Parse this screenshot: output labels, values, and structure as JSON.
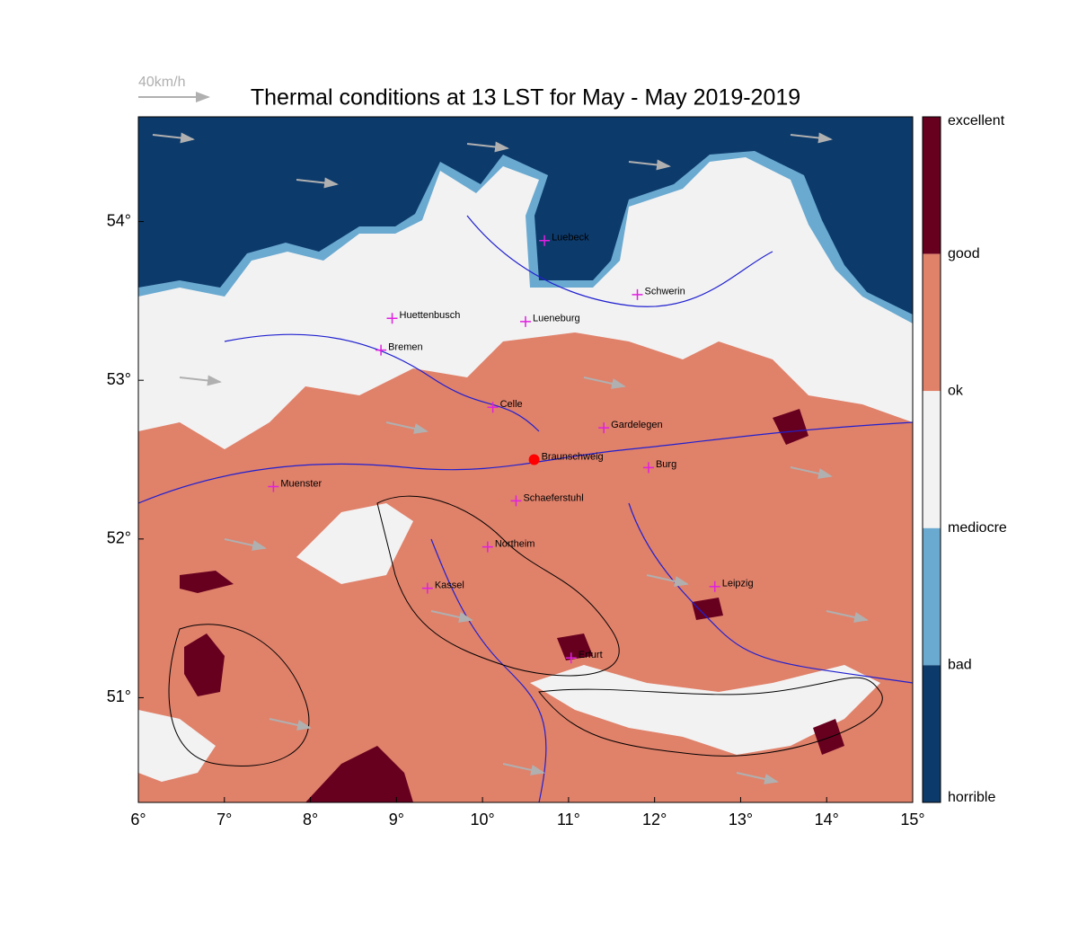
{
  "title": "Thermal conditions at 13 LST for May - May  2019-2019",
  "wind_legend": "40km/h",
  "xlim": [
    6,
    15
  ],
  "ylim": [
    50.34,
    54.66
  ],
  "xticks": [
    {
      "value": 6,
      "label": "6°"
    },
    {
      "value": 7,
      "label": "7°"
    },
    {
      "value": 8,
      "label": "8°"
    },
    {
      "value": 9,
      "label": "9°"
    },
    {
      "value": 10,
      "label": "10°"
    },
    {
      "value": 11,
      "label": "11°"
    },
    {
      "value": 12,
      "label": "12°"
    },
    {
      "value": 13,
      "label": "13°"
    },
    {
      "value": 14,
      "label": "14°"
    },
    {
      "value": 15,
      "label": "15°"
    }
  ],
  "yticks": [
    {
      "value": 51,
      "label": "51°"
    },
    {
      "value": 52,
      "label": "52°"
    },
    {
      "value": 53,
      "label": "53°"
    },
    {
      "value": 54,
      "label": "54°"
    }
  ],
  "colorbar": {
    "labels": [
      "excellent",
      "good",
      "ok",
      "mediocre",
      "bad",
      "horrible"
    ],
    "colors": [
      "#67001f",
      "#e0816a",
      "#f2f2f2",
      "#6aa9d0",
      "#0c3a6b"
    ]
  },
  "cities": [
    {
      "name": "Luebeck",
      "lon": 10.72,
      "lat": 53.88,
      "marker": "cross"
    },
    {
      "name": "Schwerin",
      "lon": 11.8,
      "lat": 53.54,
      "marker": "cross"
    },
    {
      "name": "Huettenbusch",
      "lon": 8.95,
      "lat": 53.39,
      "marker": "cross"
    },
    {
      "name": "Lueneburg",
      "lon": 10.5,
      "lat": 53.37,
      "marker": "cross"
    },
    {
      "name": "Bremen",
      "lon": 8.82,
      "lat": 53.19,
      "marker": "cross"
    },
    {
      "name": "Celle",
      "lon": 10.12,
      "lat": 52.83,
      "marker": "cross"
    },
    {
      "name": "Gardelegen",
      "lon": 11.41,
      "lat": 52.7,
      "marker": "cross"
    },
    {
      "name": "Braunschweig",
      "lon": 10.6,
      "lat": 52.5,
      "marker": "dot"
    },
    {
      "name": "Burg",
      "lon": 11.93,
      "lat": 52.45,
      "marker": "cross"
    },
    {
      "name": "Muenster",
      "lon": 7.57,
      "lat": 52.33,
      "marker": "cross"
    },
    {
      "name": "Schaeferstuhl",
      "lon": 10.39,
      "lat": 52.24,
      "marker": "cross"
    },
    {
      "name": "Northeim",
      "lon": 10.06,
      "lat": 51.95,
      "marker": "cross"
    },
    {
      "name": "Kassel",
      "lon": 9.36,
      "lat": 51.69,
      "marker": "cross"
    },
    {
      "name": "Leipzig",
      "lon": 12.7,
      "lat": 51.7,
      "marker": "cross"
    },
    {
      "name": "Erfurt",
      "lon": 11.03,
      "lat": 51.25,
      "marker": "cross"
    }
  ]
}
